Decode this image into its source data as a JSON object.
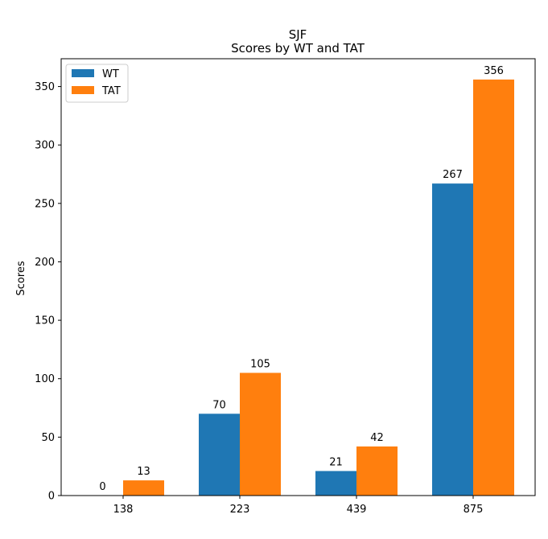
{
  "chart_data": {
    "type": "bar",
    "title": "SJF",
    "subtitle": "Scores by WT and TAT",
    "xlabel": "",
    "ylabel": "Scores",
    "categories": [
      "138",
      "223",
      "439",
      "875"
    ],
    "series": [
      {
        "name": "WT",
        "color": "#1f77b4",
        "values": [
          0,
          70,
          21,
          267
        ]
      },
      {
        "name": "TAT",
        "color": "#ff7f0e",
        "values": [
          13,
          105,
          42,
          356
        ]
      }
    ],
    "ylim": [
      0,
      373.8
    ],
    "yticks": [
      0,
      50,
      100,
      150,
      200,
      250,
      300,
      350
    ],
    "grid": false,
    "legend_position": "top-left"
  }
}
